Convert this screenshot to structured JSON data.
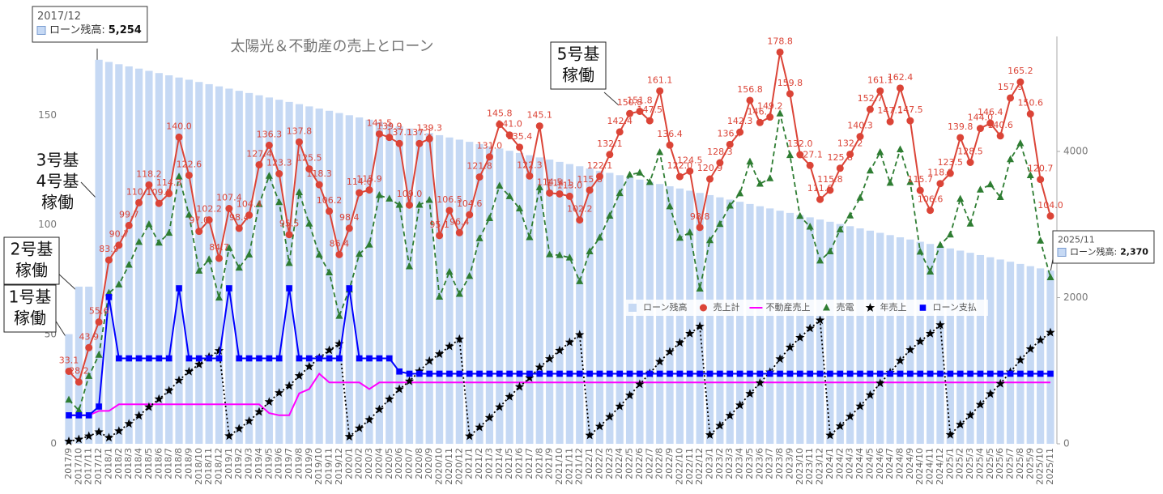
{
  "chart_data": {
    "type": "combo",
    "title": "太陽光＆不動産の売上とローン",
    "categories": [
      "2017/9",
      "2017/10",
      "2017/11",
      "2017/12",
      "2018/1",
      "2018/2",
      "2018/3",
      "2018/4",
      "2018/5",
      "2018/6",
      "2018/7",
      "2018/8",
      "2018/9",
      "2018/10",
      "2018/11",
      "2018/12",
      "2019/1",
      "2019/2",
      "2019/3",
      "2019/4",
      "2019/5",
      "2019/6",
      "2019/7",
      "2019/8",
      "2019/9",
      "2019/10",
      "2019/11",
      "2019/12",
      "2020/1",
      "2020/2",
      "2020/3",
      "2020/4",
      "2020/5",
      "2020/6",
      "2020/7",
      "2020/8",
      "2020/9",
      "2020/10",
      "2020/11",
      "2020/12",
      "2021/1",
      "2021/2",
      "2021/3",
      "2021/4",
      "2021/5",
      "2021/6",
      "2021/7",
      "2021/8",
      "2021/9",
      "2021/10",
      "2021/11",
      "2021/12",
      "2022/1",
      "2022/2",
      "2022/3",
      "2022/4",
      "2022/5",
      "2022/6",
      "2022/7",
      "2022/8",
      "2022/9",
      "2022/10",
      "2022/11",
      "2022/12",
      "2023/1",
      "2023/2",
      "2023/3",
      "2023/4",
      "2023/5",
      "2023/6",
      "2023/7",
      "2023/8",
      "2023/9",
      "2023/10",
      "2023/11",
      "2023/12",
      "2024/1",
      "2024/2",
      "2024/3",
      "2024/4",
      "2024/5",
      "2024/6",
      "2024/7",
      "2024/8",
      "2024/9",
      "2024/10",
      "2024/11",
      "2024/12",
      "2025/1",
      "2025/2",
      "2025/3",
      "2025/4",
      "2025/5",
      "2025/6",
      "2025/7",
      "2025/8",
      "2025/9",
      "2025/10",
      "2025/11"
    ],
    "ylim": [
      0,
      186
    ],
    "yticks": [
      0,
      50,
      100,
      150
    ],
    "y2lim": [
      0,
      5573
    ],
    "y2ticks": [
      0,
      2000,
      4000
    ],
    "grid": false,
    "legend": "inside-right",
    "series": [
      {
        "name": "ローン残高",
        "type": "bar",
        "axis": "y2",
        "color": "#c6d9f4",
        "values": [
          1500,
          2150,
          2150,
          5254,
          5224,
          5193,
          5163,
          5133,
          5102,
          5072,
          5041,
          5011,
          4981,
          4950,
          4920,
          4890,
          4859,
          4829,
          4799,
          4768,
          4738,
          4707,
          4677,
          4647,
          4616,
          4586,
          4556,
          4525,
          4495,
          4465,
          4434,
          4404,
          4374,
          4343,
          4313,
          4282,
          4252,
          4222,
          4191,
          4161,
          4131,
          4100,
          4070,
          4040,
          4009,
          3979,
          3948,
          3918,
          3888,
          3857,
          3827,
          3797,
          3766,
          3736,
          3706,
          3675,
          3645,
          3615,
          3584,
          3554,
          3523,
          3493,
          3463,
          3432,
          3402,
          3372,
          3341,
          3311,
          3281,
          3250,
          3220,
          3189,
          3159,
          3129,
          3098,
          3068,
          3038,
          3007,
          2977,
          2947,
          2916,
          2886,
          2855,
          2825,
          2795,
          2764,
          2734,
          2704,
          2673,
          2643,
          2613,
          2582,
          2552,
          2521,
          2491,
          2461,
          2430,
          2400,
          2370
        ]
      },
      {
        "name": "売上計",
        "type": "line",
        "marker": "circle",
        "dash": "solid",
        "color": "#db4437",
        "values": [
          33.1,
          28.2,
          43.9,
          55.6,
          83.9,
          90.7,
          99.7,
          110.1,
          118.2,
          109.8,
          114.3,
          140.0,
          122.6,
          97.0,
          102.2,
          84.7,
          107.4,
          98.4,
          104.4,
          127.4,
          136.3,
          123.3,
          95.5,
          137.8,
          125.5,
          118.3,
          106.2,
          86.4,
          98.4,
          114.6,
          115.9,
          141.5,
          139.9,
          137.1,
          109.0,
          137.1,
          139.3,
          95.1,
          106.5,
          96.4,
          104.6,
          121.8,
          131.0,
          145.8,
          141.0,
          135.4,
          122.3,
          145.1,
          114.5,
          114.1,
          113.0,
          102.2,
          115.8,
          122.1,
          132.1,
          142.4,
          150.8,
          151.8,
          147.5,
          161.1,
          136.4,
          122.0,
          124.5,
          98.8,
          120.9,
          128.3,
          136.7,
          142.3,
          156.8,
          146.7,
          149.2,
          178.8,
          159.8,
          132.0,
          127.1,
          111.6,
          115.8,
          125.8,
          132.2,
          140.3,
          152.7,
          161.1,
          147.1,
          162.4,
          147.5,
          115.7,
          106.6,
          118.8,
          123.5,
          139.8,
          128.5,
          144.0,
          146.4,
          140.6,
          157.9,
          165.2,
          150.6,
          120.7,
          104.0
        ],
        "value_labels": [
          "33.1",
          "28.2",
          "43.9",
          "55.6",
          "83.9",
          "90.7",
          "99.7",
          "110.1",
          "118.2",
          "109.8",
          "114.3",
          "140.0",
          "122.6",
          "97.0",
          "102.2",
          "84.7",
          "107.4",
          "98.4",
          "104.4",
          "127.4",
          "136.3",
          "123.3",
          "95.5",
          "137.8",
          "125.5",
          "118.3",
          "106.2",
          "86.4",
          "98.4",
          "114.6",
          "115.9",
          "141.5",
          "139.9",
          "137.1",
          "109.0",
          "137.1",
          "139.3",
          "95.1",
          "106.5",
          "96.4",
          "104.6",
          "121.8",
          "131.0",
          "145.8",
          "141.0",
          "135.4",
          "122.3",
          "145.1",
          "114.5",
          "114.1",
          "113.0",
          "102.2",
          "115.8",
          "122.1",
          "132.1",
          "142.4",
          "150.8",
          "151.8",
          "147.5",
          "161.1",
          "136.4",
          "122.0",
          "124.5",
          "98.8",
          "120.9",
          "128.3",
          "136.7",
          "142.3",
          "156.8",
          "146.7",
          "149.2",
          "178.8",
          "159.8",
          "132.0",
          "127.1",
          "111.6",
          "115.8",
          "125.8",
          "132.2",
          "140.3",
          "152.7",
          "161.1",
          "147.1",
          "162.4",
          "147.5",
          "115.7",
          "106.6",
          "118.8",
          "123.5",
          "139.8",
          "128.5",
          "144.0",
          "146.4",
          "140.6",
          "157.9",
          "165.2",
          "150.6",
          "120.7",
          "104.0"
        ]
      },
      {
        "name": "不動産売上",
        "type": "line",
        "marker": "none",
        "dash": "solid",
        "color": "#ff00ff",
        "values": [
          13,
          13,
          13,
          15,
          15,
          18,
          18,
          18,
          18,
          18,
          18,
          18,
          18,
          18,
          18,
          18,
          18,
          18,
          18,
          18,
          14,
          13,
          13,
          23,
          25,
          32,
          28,
          28,
          28,
          28,
          25,
          28,
          28,
          28,
          28,
          28,
          28,
          28,
          28,
          28,
          28,
          28,
          28,
          28,
          28,
          28,
          28,
          28,
          28,
          28,
          28,
          28,
          28,
          28,
          28,
          28,
          28,
          28,
          28,
          28,
          28,
          28,
          28,
          28,
          28,
          28,
          28,
          28,
          28,
          28,
          28,
          28,
          28,
          28,
          28,
          28,
          28,
          28,
          28,
          28,
          28,
          28,
          28,
          28,
          28,
          28,
          28,
          28,
          28,
          28,
          28,
          28,
          28,
          28,
          28,
          28,
          28,
          28,
          28
        ]
      },
      {
        "name": "売電",
        "type": "line",
        "marker": "triangle",
        "dash": "dashed",
        "color": "#2e7d32",
        "values": [
          20.1,
          15.2,
          30.9,
          40.6,
          68.9,
          72.7,
          81.7,
          92.1,
          100.2,
          91.8,
          96.3,
          122.0,
          104.6,
          79.0,
          84.2,
          66.7,
          89.4,
          80.4,
          86.4,
          109.4,
          122.3,
          110.3,
          82.5,
          114.8,
          100.5,
          86.3,
          78.2,
          58.4,
          70.4,
          86.6,
          90.9,
          113.5,
          111.9,
          109.1,
          81.0,
          109.1,
          111.3,
          67.1,
          78.5,
          68.4,
          76.6,
          93.8,
          103.0,
          117.8,
          113.0,
          107.4,
          94.3,
          117.1,
          86.5,
          86.1,
          85.0,
          74.2,
          87.8,
          94.1,
          104.1,
          114.4,
          122.8,
          123.8,
          119.5,
          133.1,
          108.4,
          94.0,
          96.5,
          70.8,
          92.9,
          100.3,
          108.7,
          114.3,
          128.8,
          118.7,
          121.2,
          150.8,
          131.8,
          104.0,
          99.1,
          83.6,
          87.8,
          97.8,
          104.2,
          112.3,
          124.7,
          133.1,
          119.1,
          134.4,
          119.5,
          87.7,
          78.6,
          90.8,
          95.5,
          111.8,
          100.5,
          116.0,
          118.4,
          112.6,
          129.9,
          137.2,
          122.6,
          92.7,
          76.0
        ]
      },
      {
        "name": "年売上",
        "type": "line",
        "marker": "star",
        "dash": "dotted",
        "axis": "y2",
        "color": "#000000",
        "values": [
          33,
          61,
          105,
          161,
          84,
          175,
          274,
          384,
          503,
          612,
          727,
          867,
          989,
          1086,
          1189,
          1273,
          107,
          206,
          310,
          437,
          574,
          697,
          792,
          930,
          1056,
          1174,
          1280,
          1367,
          98,
          213,
          329,
          470,
          610,
          747,
          856,
          993,
          1133,
          1228,
          1334,
          1431,
          105,
          226,
          357,
          503,
          644,
          780,
          902,
          1047,
          1162,
          1276,
          1389,
          1491,
          116,
          238,
          370,
          512,
          663,
          815,
          963,
          1124,
          1260,
          1382,
          1507,
          1606,
          121,
          249,
          386,
          528,
          685,
          832,
          981,
          1160,
          1320,
          1452,
          1579,
          1690,
          116,
          242,
          374,
          514,
          667,
          828,
          975,
          1137,
          1285,
          1400,
          1507,
          1626,
          124,
          263,
          392,
          536,
          682,
          823,
          981,
          1146,
          1297,
          1418,
          1522
        ]
      },
      {
        "name": "ローン支払",
        "type": "line",
        "marker": "square",
        "dash": "solid",
        "color": "#0000ff",
        "values": [
          13,
          13,
          13,
          17,
          67,
          39,
          39,
          39,
          39,
          39,
          39,
          71,
          39,
          39,
          39,
          39,
          71,
          39,
          39,
          39,
          39,
          39,
          71,
          39,
          39,
          39,
          39,
          39,
          71,
          39,
          39,
          39,
          39,
          33,
          32,
          32,
          32,
          32,
          32,
          32,
          32,
          32,
          32,
          32,
          32,
          32,
          32,
          32,
          32,
          32,
          32,
          32,
          32,
          32,
          32,
          32,
          32,
          32,
          32,
          32,
          32,
          32,
          32,
          32,
          32,
          32,
          32,
          32,
          32,
          32,
          32,
          32,
          32,
          32,
          32,
          32,
          32,
          32,
          32,
          32,
          32,
          32,
          32,
          32,
          32,
          32,
          32,
          32,
          32,
          32,
          32,
          32,
          32,
          32,
          32,
          32,
          32,
          32,
          32
        ]
      }
    ],
    "tooltips": [
      {
        "title": "2017/12",
        "label": "ローン残高:",
        "value": "5,254"
      },
      {
        "title": "2025/11",
        "label": "ローン残高:",
        "value": "2,370"
      }
    ],
    "annotations": [
      {
        "lines": [
          "1号基",
          "稼働"
        ]
      },
      {
        "lines": [
          "2号基",
          "稼働"
        ]
      },
      {
        "lines": [
          "3号基",
          "4号基",
          "稼働"
        ]
      },
      {
        "lines": [
          "5号基",
          "稼働"
        ]
      }
    ]
  }
}
